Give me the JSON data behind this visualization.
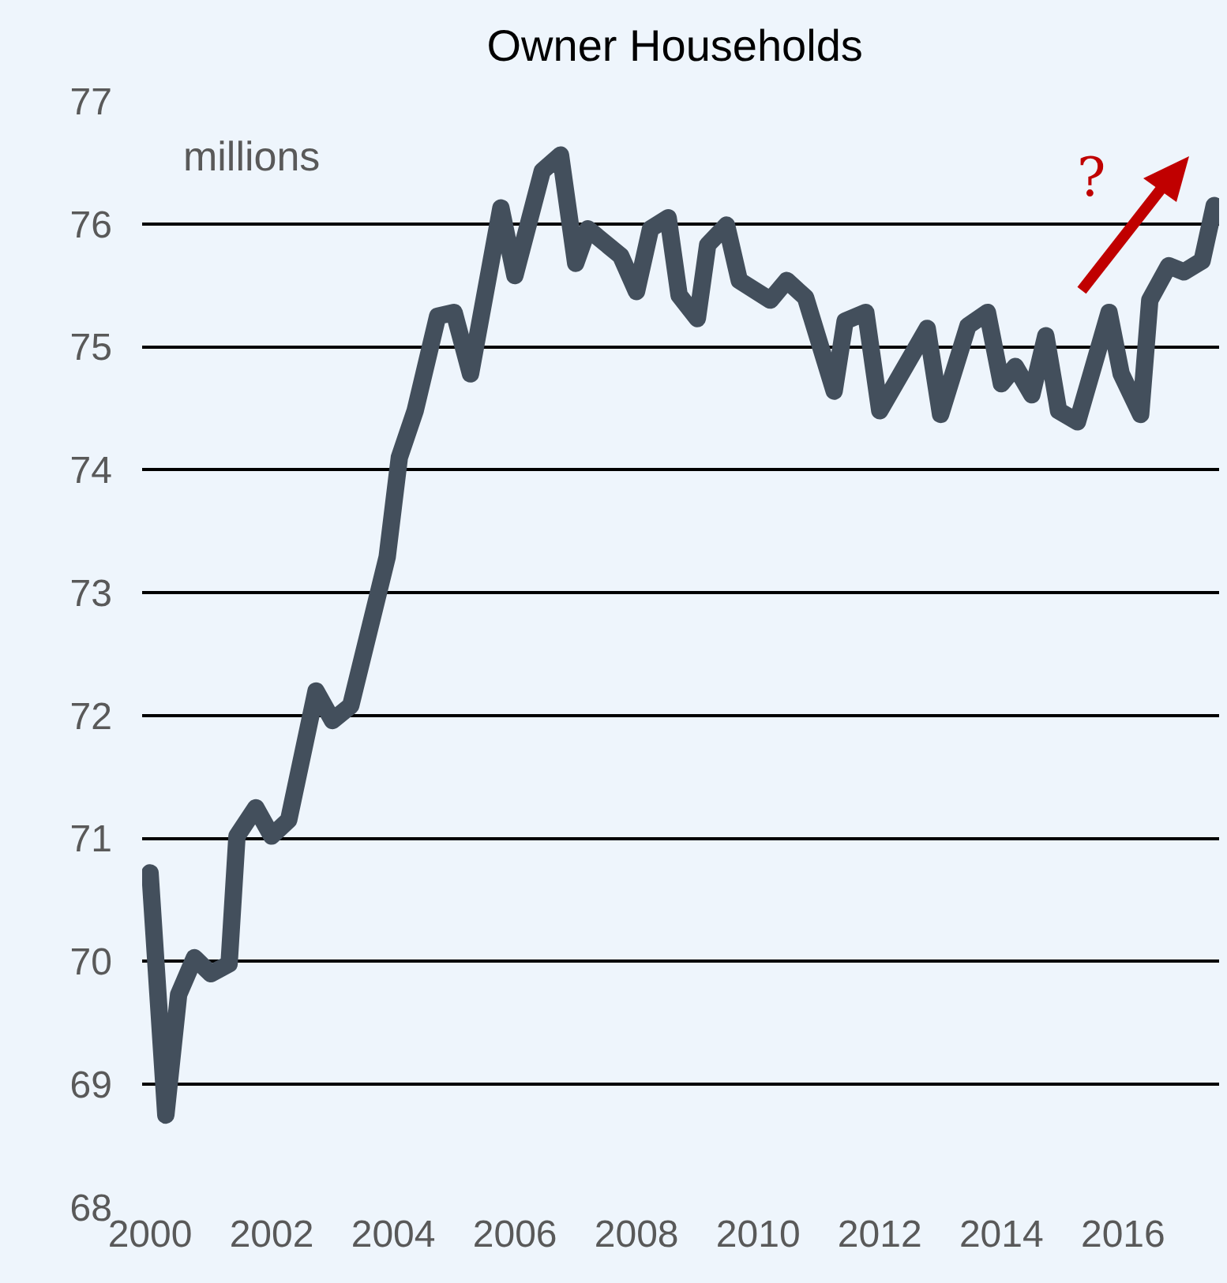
{
  "chart_data": {
    "type": "line",
    "title": "Owner Households",
    "annotations": [
      "millions",
      "?"
    ],
    "x": [
      2000.0,
      2000.26,
      2000.47,
      2000.73,
      2001.0,
      2001.3,
      2001.43,
      2001.74,
      2002.0,
      2002.28,
      2002.73,
      2003.0,
      2003.3,
      2003.9,
      2004.1,
      2004.36,
      2004.73,
      2005.0,
      2005.27,
      2005.77,
      2006.0,
      2006.45,
      2006.75,
      2007.0,
      2007.2,
      2007.74,
      2008.0,
      2008.23,
      2008.52,
      2008.7,
      2009.0,
      2009.17,
      2009.48,
      2009.69,
      2010.2,
      2010.47,
      2010.78,
      2011.25,
      2011.43,
      2011.77,
      2012.0,
      2012.78,
      2013.0,
      2013.45,
      2013.77,
      2014.0,
      2014.23,
      2014.5,
      2014.73,
      2014.94,
      2015.25,
      2015.77,
      2015.97,
      2016.29,
      2016.44,
      2016.75,
      2017.0,
      2017.3,
      2017.5
    ],
    "series": [
      {
        "color": "#434f5c",
        "values": [
          70.72,
          68.75,
          69.73,
          70.03,
          69.9,
          69.98,
          71.02,
          71.25,
          71.02,
          71.15,
          72.2,
          71.96,
          72.08,
          73.29,
          74.1,
          74.48,
          75.25,
          75.28,
          74.78,
          76.13,
          75.58,
          76.43,
          76.56,
          75.68,
          75.96,
          75.74,
          75.45,
          75.96,
          76.05,
          75.42,
          75.23,
          75.83,
          75.99,
          75.54,
          75.38,
          75.54,
          75.4,
          74.64,
          75.21,
          75.28,
          74.48,
          75.15,
          74.45,
          75.17,
          75.28,
          74.7,
          74.84,
          74.61,
          75.09,
          74.48,
          74.39,
          75.28,
          74.78,
          74.45,
          75.38,
          75.66,
          75.61,
          75.7,
          76.15
        ]
      }
    ],
    "xlim": [
      1999.87,
      2017.58
    ],
    "xticks": [
      2000,
      2002,
      2004,
      2006,
      2008,
      2010,
      2012,
      2014,
      2016
    ],
    "ylim": [
      68,
      77
    ],
    "yticks": [
      68,
      69,
      70,
      71,
      72,
      73,
      74,
      75,
      76,
      77
    ],
    "grid": "y"
  }
}
